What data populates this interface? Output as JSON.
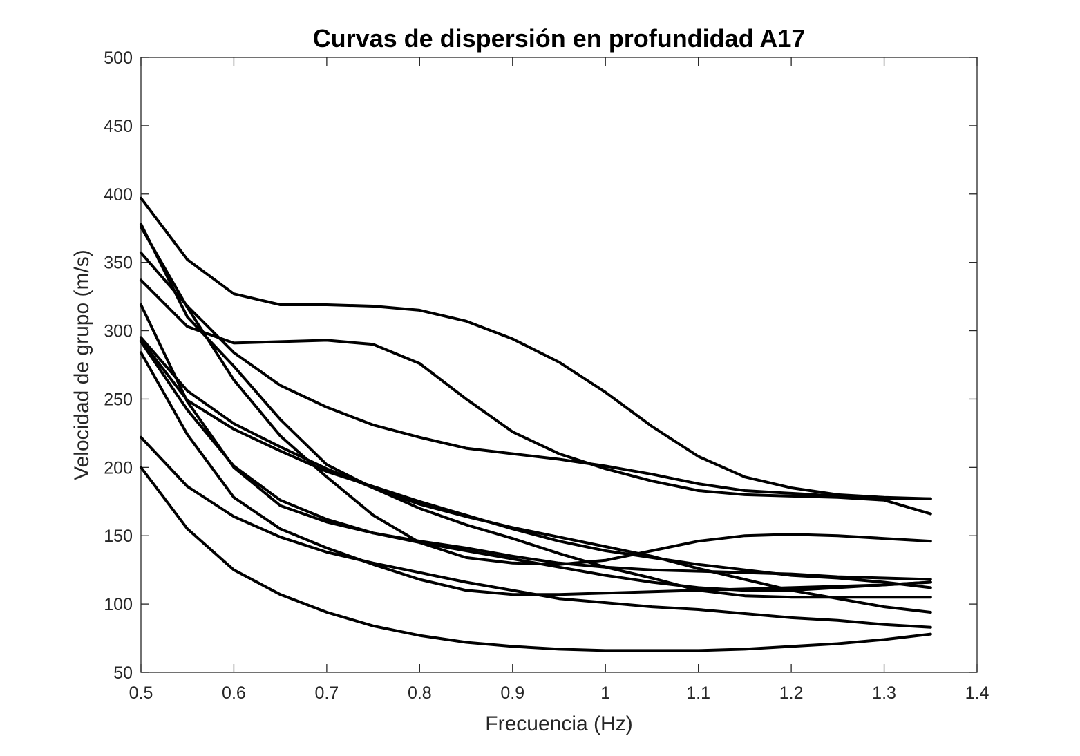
{
  "chart_data": {
    "type": "line",
    "title": "Curvas de dispersión en profundidad A17",
    "xlabel": "Frecuencia (Hz)",
    "ylabel": "Velocidad de grupo (m/s)",
    "xlim": [
      0.5,
      1.4
    ],
    "ylim": [
      50,
      500
    ],
    "xticks": [
      0.5,
      0.6,
      0.7,
      0.8,
      0.9,
      1,
      1.1,
      1.2,
      1.3,
      1.4
    ],
    "xtick_labels": [
      "0.5",
      "0.6",
      "0.7",
      "0.8",
      "0.9",
      "1",
      "1.1",
      "1.2",
      "1.3",
      "1.4"
    ],
    "yticks": [
      50,
      100,
      150,
      200,
      250,
      300,
      350,
      400,
      450,
      500
    ],
    "ytick_labels": [
      "50",
      "100",
      "150",
      "200",
      "250",
      "300",
      "350",
      "400",
      "450",
      "500"
    ],
    "grid": false,
    "line_color": "#000000",
    "x": [
      0.5,
      0.55,
      0.6,
      0.65,
      0.7,
      0.75,
      0.8,
      0.85,
      0.9,
      0.95,
      1.0,
      1.05,
      1.1,
      1.15,
      1.2,
      1.25,
      1.3,
      1.35
    ],
    "series": [
      {
        "values": [
          397,
          352,
          327,
          319,
          319,
          318,
          315,
          307,
          294,
          277,
          255,
          230,
          208,
          193,
          185,
          180,
          178,
          177
        ]
      },
      {
        "values": [
          337,
          303,
          291,
          292,
          293,
          290,
          276,
          250,
          226,
          210,
          199,
          190,
          183,
          180,
          179,
          178,
          176,
          166
        ]
      },
      {
        "values": [
          357,
          318,
          284,
          260,
          244,
          231,
          222,
          214,
          210,
          206,
          201,
          195,
          188,
          183,
          181,
          179,
          177,
          177
        ]
      },
      {
        "values": [
          376,
          317,
          264,
          223,
          193,
          165,
          145,
          134,
          130,
          129,
          132,
          139,
          146,
          150,
          151,
          150,
          148,
          146
        ]
      },
      {
        "values": [
          378,
          310,
          274,
          235,
          202,
          185,
          170,
          158,
          148,
          137,
          127,
          119,
          110,
          106,
          105,
          105,
          105,
          105
        ]
      },
      {
        "values": [
          319,
          248,
          200,
          172,
          160,
          152,
          146,
          141,
          135,
          130,
          127,
          125,
          124,
          123,
          122,
          120,
          119,
          118
        ]
      },
      {
        "values": [
          295,
          256,
          232,
          215,
          199,
          185,
          173,
          164,
          156,
          149,
          142,
          135,
          126,
          118,
          110,
          104,
          98,
          94
        ]
      },
      {
        "values": [
          293,
          249,
          228,
          212,
          197,
          186,
          175,
          165,
          155,
          146,
          139,
          134,
          129,
          125,
          121,
          119,
          116,
          112
        ]
      },
      {
        "values": [
          292,
          242,
          201,
          176,
          162,
          152,
          145,
          139,
          133,
          127,
          121,
          116,
          112,
          110,
          110,
          112,
          114,
          116
        ]
      },
      {
        "values": [
          284,
          224,
          178,
          155,
          141,
          129,
          118,
          110,
          107,
          107,
          108,
          109,
          110,
          111,
          112,
          113,
          114,
          116
        ]
      },
      {
        "values": [
          222,
          186,
          164,
          149,
          138,
          130,
          123,
          116,
          110,
          104,
          101,
          98,
          96,
          93,
          90,
          88,
          85,
          83
        ]
      },
      {
        "values": [
          200,
          155,
          125,
          107,
          94,
          84,
          77,
          72,
          69,
          67,
          66,
          66,
          66,
          67,
          69,
          71,
          74,
          78
        ]
      }
    ]
  }
}
